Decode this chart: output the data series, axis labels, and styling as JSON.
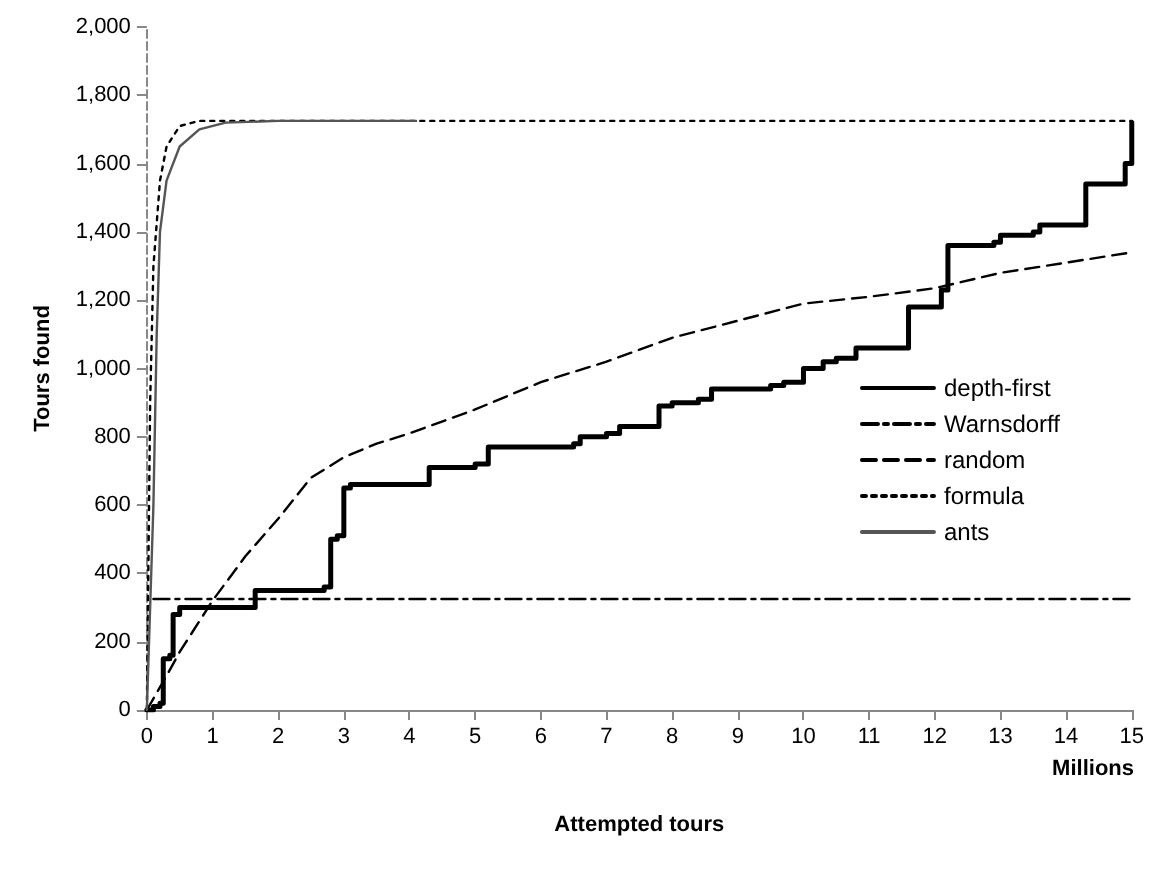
{
  "chart_data": {
    "type": "line",
    "xlabel": "Attempted tours",
    "ylabel": "Tours found",
    "annotations": [
      "Millions"
    ],
    "xlim": [
      0,
      15
    ],
    "xticks": [
      0,
      1,
      2,
      3,
      4,
      5,
      6,
      7,
      8,
      9,
      10,
      11,
      12,
      13,
      14,
      15
    ],
    "ylim": [
      0,
      2000
    ],
    "yticks": [
      0,
      200,
      400,
      600,
      800,
      {
        "value": 1000,
        "label": "1,000"
      },
      {
        "value": 1200,
        "label": "1,200"
      },
      {
        "value": 1400,
        "label": "1,400"
      },
      {
        "value": 1600,
        "label": "1,600"
      },
      {
        "value": 1800,
        "label": "1,800"
      },
      {
        "value": 2000,
        "label": "2,000"
      }
    ],
    "grid": false,
    "legend": "right",
    "marker": "none",
    "series": [
      {
        "name": "depth-first",
        "type": "step",
        "color": "#000000",
        "line_style": "solid",
        "x": [
          0,
          0.1,
          0.2,
          0.25,
          0.35,
          0.4,
          0.5,
          1.6,
          1.65,
          2.7,
          2.8,
          2.9,
          3.0,
          3.1,
          4.2,
          4.3,
          5.0,
          5.2,
          6.5,
          6.6,
          7.0,
          7.2,
          7.7,
          7.8,
          8.0,
          8.4,
          8.6,
          9.5,
          9.7,
          10.0,
          10.3,
          10.5,
          10.8,
          11.5,
          11.6,
          12.1,
          12.2,
          12.9,
          13.0,
          13.5,
          13.6,
          14.2,
          14.3,
          14.9,
          15
        ],
        "values": [
          0,
          10,
          20,
          150,
          160,
          280,
          300,
          300,
          350,
          360,
          500,
          510,
          650,
          660,
          660,
          710,
          720,
          770,
          780,
          800,
          810,
          830,
          830,
          890,
          900,
          910,
          940,
          950,
          960,
          1000,
          1020,
          1030,
          1060,
          1060,
          1180,
          1230,
          1360,
          1370,
          1390,
          1400,
          1420,
          1420,
          1540,
          1600,
          1720
        ]
      },
      {
        "name": "Warnsdorff",
        "color": "#000000",
        "line_style": "dashdot",
        "x": [
          0.1,
          15
        ],
        "values": [
          325,
          325
        ]
      },
      {
        "name": "random",
        "color": "#000000",
        "line_style": "dashed",
        "x": [
          0,
          0.3,
          0.5,
          1,
          1.5,
          2,
          2.5,
          3,
          3.5,
          4,
          5,
          6,
          7,
          8,
          9,
          10,
          11,
          12,
          13,
          14,
          15
        ],
        "values": [
          0,
          100,
          170,
          320,
          450,
          560,
          680,
          740,
          780,
          810,
          880,
          960,
          1020,
          1090,
          1140,
          1190,
          1210,
          1235,
          1280,
          1310,
          1340
        ]
      },
      {
        "name": "formula",
        "color": "#000000",
        "line_style": "dotted",
        "x": [
          0,
          0.05,
          0.1,
          0.2,
          0.3,
          0.5,
          0.8,
          15
        ],
        "values": [
          0,
          900,
          1300,
          1550,
          1650,
          1710,
          1725,
          1725
        ]
      },
      {
        "name": "ants",
        "color": "#555555",
        "line_style": "solid",
        "x": [
          0,
          0.1,
          0.15,
          0.2,
          0.3,
          0.5,
          0.8,
          1.2,
          2,
          4.1
        ],
        "values": [
          0,
          600,
          1100,
          1400,
          1550,
          1650,
          1700,
          1720,
          1725,
          1725
        ]
      }
    ]
  }
}
